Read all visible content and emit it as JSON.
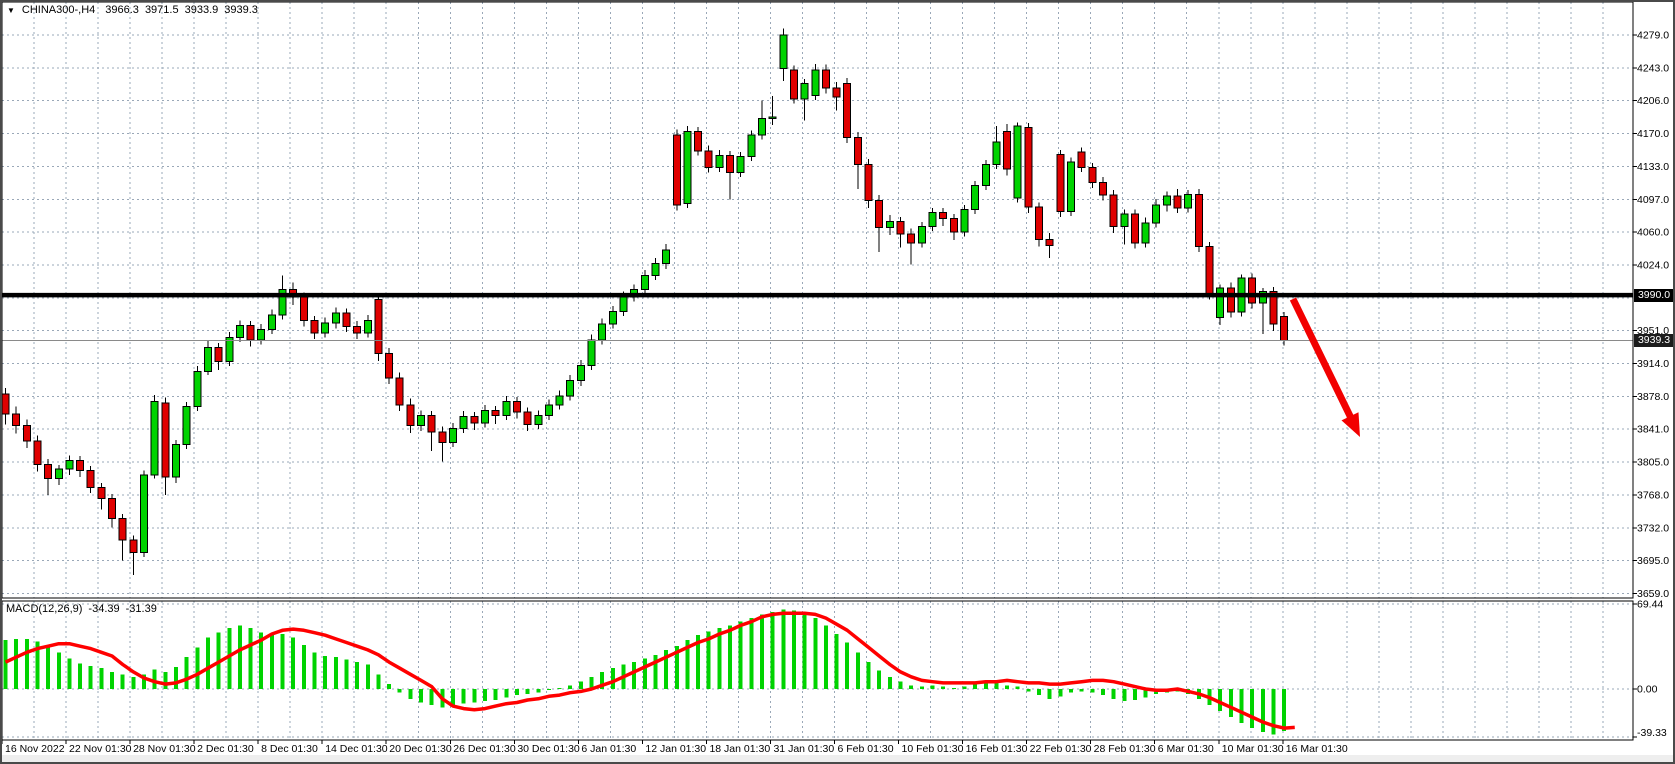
{
  "header": {
    "dropdown_icon": "▼",
    "symbol_period": "CHINA300-,H4",
    "open": "3966.3",
    "high": "3971.5",
    "low": "3933.9",
    "close": "3939.3"
  },
  "price_axis": {
    "hline_badge": "3990.0",
    "current_badge": "3939.3",
    "labels": [
      {
        "text": "4279.0",
        "price": 4279.0
      },
      {
        "text": "4243.0",
        "price": 4242.5
      },
      {
        "text": "4206.0",
        "price": 4206.0
      },
      {
        "text": "4170.0",
        "price": 4169.5
      },
      {
        "text": "4133.0",
        "price": 4133.0
      },
      {
        "text": "4097.0",
        "price": 4096.5
      },
      {
        "text": "4060.0",
        "price": 4060.0
      },
      {
        "text": "4024.0",
        "price": 4023.5
      },
      {
        "text": "3951.0",
        "price": 3950.5
      },
      {
        "text": "3914.0",
        "price": 3914.0
      },
      {
        "text": "3878.0",
        "price": 3877.5
      },
      {
        "text": "3841.0",
        "price": 3841.0
      },
      {
        "text": "3805.0",
        "price": 3804.5
      },
      {
        "text": "3768.0",
        "price": 3768.0
      },
      {
        "text": "3732.0",
        "price": 3731.5
      },
      {
        "text": "3695.0",
        "price": 3695.0
      },
      {
        "text": "3659.0",
        "price": 3658.5
      }
    ]
  },
  "macd_panel": {
    "label": "MACD(12,26,9)",
    "main_value": "-34.39",
    "signal_value": "-31.39",
    "axis_labels": [
      {
        "text": "69.44",
        "value": 69.44
      },
      {
        "text": "0.00",
        "value": 0
      },
      {
        "text": "-39.33",
        "value": -39.33
      }
    ]
  },
  "colors": {
    "bull": "#00d300",
    "bear": "#e00000",
    "wick": "#000000",
    "grid": "#9aa8b8",
    "signal_line": "#ff0000",
    "arrow": "#f20000",
    "hline": "#000000",
    "current_price_line": "#8a8a8a",
    "border": "#000000",
    "text": "#000000"
  },
  "chart_data": [
    {
      "type": "candlestick",
      "title": "CHINA300-,H4",
      "timeframe": "H4",
      "ylim": [
        3659,
        4279
      ],
      "grid": true,
      "x_labels": [
        "16 Nov 2022",
        "22 Nov 01:30",
        "28 Nov 01:30",
        "2 Dec 01:30",
        "8 Dec 01:30",
        "14 Dec 01:30",
        "20 Dec 01:30",
        "26 Dec 01:30",
        "30 Dec 01:30",
        "6 Jan 01:30",
        "12 Jan 01:30",
        "18 Jan 01:30",
        "31 Jan 01:30",
        "6 Feb 01:30",
        "10 Feb 01:30",
        "16 Feb 01:30",
        "22 Feb 01:30",
        "28 Feb 01:30",
        "6 Mar 01:30",
        "10 Mar 01:30",
        "16 Mar 01:30"
      ],
      "overlays": {
        "horizontal_line_price": 3990.0,
        "current_price": 3939.3,
        "trend_arrow": {
          "direction": "down",
          "from_price": 3985,
          "to_price": 3832
        }
      },
      "ohlc": [
        [
          3880,
          3887,
          3846,
          3858
        ],
        [
          3858,
          3866,
          3836,
          3845
        ],
        [
          3845,
          3852,
          3820,
          3828
        ],
        [
          3828,
          3834,
          3794,
          3802
        ],
        [
          3802,
          3808,
          3768,
          3786
        ],
        [
          3786,
          3801,
          3779,
          3797
        ],
        [
          3797,
          3812,
          3790,
          3806
        ],
        [
          3806,
          3811,
          3788,
          3795
        ],
        [
          3795,
          3800,
          3770,
          3776
        ],
        [
          3776,
          3781,
          3752,
          3764
        ],
        [
          3764,
          3769,
          3732,
          3742
        ],
        [
          3742,
          3747,
          3695,
          3718
        ],
        [
          3718,
          3723,
          3679,
          3704
        ],
        [
          3704,
          3795,
          3699,
          3790
        ],
        [
          3790,
          3879,
          3786,
          3872
        ],
        [
          3870,
          3876,
          3768,
          3788
        ],
        [
          3788,
          3829,
          3781,
          3824
        ],
        [
          3824,
          3871,
          3819,
          3866
        ],
        [
          3866,
          3911,
          3861,
          3905
        ],
        [
          3905,
          3939,
          3901,
          3932
        ],
        [
          3932,
          3937,
          3907,
          3916
        ],
        [
          3916,
          3949,
          3911,
          3943
        ],
        [
          3943,
          3962,
          3938,
          3956
        ],
        [
          3956,
          3961,
          3933,
          3940
        ],
        [
          3940,
          3958,
          3935,
          3952
        ],
        [
          3952,
          3974,
          3947,
          3968
        ],
        [
          3968,
          4012,
          3963,
          3996
        ],
        [
          3996,
          4004,
          3979,
          3988
        ],
        [
          3988,
          3993,
          3955,
          3962
        ],
        [
          3962,
          3967,
          3941,
          3948
        ],
        [
          3948,
          3965,
          3943,
          3959
        ],
        [
          3959,
          3976,
          3953,
          3970
        ],
        [
          3970,
          3975,
          3949,
          3955
        ],
        [
          3955,
          3961,
          3941,
          3948
        ],
        [
          3948,
          3968,
          3943,
          3962
        ],
        [
          3985,
          3991,
          3917,
          3925
        ],
        [
          3925,
          3931,
          3891,
          3898
        ],
        [
          3898,
          3904,
          3861,
          3868
        ],
        [
          3868,
          3875,
          3837,
          3845
        ],
        [
          3845,
          3862,
          3839,
          3856
        ],
        [
          3856,
          3861,
          3817,
          3838
        ],
        [
          3838,
          3844,
          3805,
          3826
        ],
        [
          3826,
          3848,
          3821,
          3842
        ],
        [
          3842,
          3861,
          3837,
          3855
        ],
        [
          3855,
          3860,
          3840,
          3848
        ],
        [
          3848,
          3868,
          3843,
          3862
        ],
        [
          3862,
          3867,
          3847,
          3856
        ],
        [
          3856,
          3878,
          3851,
          3872
        ],
        [
          3872,
          3877,
          3853,
          3860
        ],
        [
          3860,
          3865,
          3839,
          3846
        ],
        [
          3846,
          3862,
          3841,
          3856
        ],
        [
          3856,
          3874,
          3851,
          3868
        ],
        [
          3868,
          3884,
          3863,
          3878
        ],
        [
          3878,
          3901,
          3873,
          3895
        ],
        [
          3895,
          3918,
          3889,
          3912
        ],
        [
          3912,
          3946,
          3907,
          3940
        ],
        [
          3940,
          3964,
          3935,
          3958
        ],
        [
          3958,
          3978,
          3953,
          3972
        ],
        [
          3972,
          3994,
          3967,
          3988
        ],
        [
          3988,
          4002,
          3983,
          3996
        ],
        [
          3996,
          4018,
          3991,
          4012
        ],
        [
          4012,
          4031,
          4007,
          4025
        ],
        [
          4025,
          4047,
          4019,
          4040
        ],
        [
          4168,
          4174,
          4084,
          4090
        ],
        [
          4092,
          4178,
          4087,
          4172
        ],
        [
          4172,
          4177,
          4145,
          4150
        ],
        [
          4150,
          4156,
          4126,
          4132
        ],
        [
          4132,
          4151,
          4127,
          4145
        ],
        [
          4145,
          4150,
          4096,
          4126
        ],
        [
          4126,
          4149,
          4121,
          4144
        ],
        [
          4144,
          4173,
          4139,
          4168
        ],
        [
          4168,
          4206,
          4163,
          4186
        ],
        [
          4186,
          4211,
          4179,
          4188
        ],
        [
          4242,
          4286,
          4228,
          4279
        ],
        [
          4240,
          4245,
          4203,
          4208
        ],
        [
          4208,
          4230,
          4184,
          4225
        ],
        [
          4212,
          4247,
          4207,
          4240
        ],
        [
          4240,
          4246,
          4214,
          4220
        ],
        [
          4220,
          4227,
          4195,
          4210
        ],
        [
          4225,
          4231,
          4159,
          4165
        ],
        [
          4165,
          4171,
          4108,
          4135
        ],
        [
          4135,
          4141,
          4087,
          4095
        ],
        [
          4095,
          4101,
          4038,
          4065
        ],
        [
          4065,
          4079,
          4057,
          4072
        ],
        [
          4072,
          4077,
          4043,
          4058
        ],
        [
          4058,
          4064,
          4024,
          4048
        ],
        [
          4048,
          4071,
          4043,
          4066
        ],
        [
          4066,
          4087,
          4061,
          4082
        ],
        [
          4082,
          4087,
          4067,
          4075
        ],
        [
          4075,
          4080,
          4051,
          4060
        ],
        [
          4060,
          4090,
          4055,
          4085
        ],
        [
          4085,
          4117,
          4080,
          4112
        ],
        [
          4112,
          4140,
          4107,
          4135
        ],
        [
          4135,
          4178,
          4130,
          4160
        ],
        [
          4172,
          4180,
          4123,
          4130
        ],
        [
          4098,
          4182,
          4093,
          4178
        ],
        [
          4176,
          4181,
          4081,
          4088
        ],
        [
          4088,
          4093,
          4044,
          4052
        ],
        [
          4052,
          4059,
          4031,
          4045
        ],
        [
          4146,
          4151,
          4077,
          4083
        ],
        [
          4083,
          4143,
          4078,
          4138
        ],
        [
          4149,
          4154,
          4127,
          4132
        ],
        [
          4132,
          4137,
          4109,
          4115
        ],
        [
          4115,
          4121,
          4095,
          4101
        ],
        [
          4101,
          4107,
          4059,
          4066
        ],
        [
          4066,
          4085,
          4046,
          4080
        ],
        [
          4080,
          4085,
          4042,
          4048
        ],
        [
          4048,
          4076,
          4043,
          4070
        ],
        [
          4070,
          4097,
          4065,
          4090
        ],
        [
          4090,
          4105,
          4083,
          4100
        ],
        [
          4100,
          4108,
          4081,
          4087
        ],
        [
          4087,
          4107,
          4082,
          4102
        ],
        [
          4102,
          4108,
          4038,
          4044
        ],
        [
          4044,
          4049,
          3985,
          3992
        ],
        [
          3965,
          4002,
          3957,
          3998
        ],
        [
          3998,
          4004,
          3965,
          3971
        ],
        [
          3971,
          4013,
          3966,
          4009
        ],
        [
          4009,
          4014,
          3975,
          3981
        ],
        [
          3981,
          3998,
          3947,
          3994
        ],
        [
          3994,
          3999,
          3950,
          3958
        ],
        [
          3966.3,
          3971.5,
          3933.9,
          3939.3
        ]
      ]
    },
    {
      "type": "macd",
      "params": "12,26,9",
      "ylim": [
        -39.33,
        69.44
      ],
      "current_values": {
        "macd": -34.39,
        "signal": -31.39
      },
      "histogram": [
        40,
        41,
        41,
        39,
        35,
        30,
        25,
        21,
        19,
        17,
        14,
        12,
        10,
        12,
        16,
        14,
        18,
        26,
        34,
        42,
        46,
        50,
        52,
        50,
        46,
        44,
        45,
        42,
        36,
        30,
        27,
        26,
        24,
        22,
        20,
        12,
        4,
        -3,
        -8,
        -11,
        -13,
        -15,
        -14,
        -12,
        -11,
        -10,
        -9,
        -7,
        -5,
        -4,
        -3,
        -1,
        1,
        3,
        6,
        10,
        14,
        17,
        20,
        22,
        25,
        28,
        32,
        35,
        40,
        44,
        47,
        50,
        52,
        55,
        58,
        61,
        63,
        65,
        64,
        62,
        58,
        52,
        45,
        38,
        30,
        22,
        15,
        10,
        6,
        3,
        2,
        3,
        2,
        1,
        2,
        4,
        5,
        6,
        3,
        2,
        -2,
        -5,
        -8,
        -6,
        -3,
        -2,
        -3,
        -5,
        -8,
        -10,
        -9,
        -7,
        -4,
        -3,
        -2,
        -4,
        -8,
        -13,
        -18,
        -23,
        -28,
        -32,
        -35,
        -37,
        -34.39
      ],
      "signal": [
        22,
        26,
        30,
        33,
        35,
        37,
        37,
        35,
        33,
        30,
        27,
        20,
        14,
        9,
        6,
        4,
        5,
        8,
        12,
        17,
        22,
        27,
        32,
        36,
        40,
        45,
        48,
        49,
        48,
        46,
        44,
        41,
        38,
        35,
        32,
        28,
        22,
        17,
        12,
        7,
        2,
        -8,
        -14,
        -16,
        -17,
        -16,
        -14,
        -12,
        -11,
        -9,
        -8,
        -6,
        -5,
        -3,
        -2,
        0,
        3,
        6,
        10,
        14,
        18,
        22,
        26,
        30,
        34,
        38,
        41,
        45,
        48,
        52,
        55,
        59,
        61,
        62,
        62,
        62,
        61,
        58,
        53,
        48,
        41,
        34,
        27,
        20,
        14,
        10,
        7,
        6,
        5,
        5,
        5,
        5,
        6,
        6,
        7,
        6,
        5,
        5,
        4,
        4,
        5,
        6,
        7,
        7,
        6,
        4,
        2,
        0,
        -1,
        -1,
        0,
        -2,
        -4,
        -7,
        -11,
        -15,
        -19,
        -23,
        -27,
        -30,
        -32,
        -31.39
      ]
    }
  ]
}
